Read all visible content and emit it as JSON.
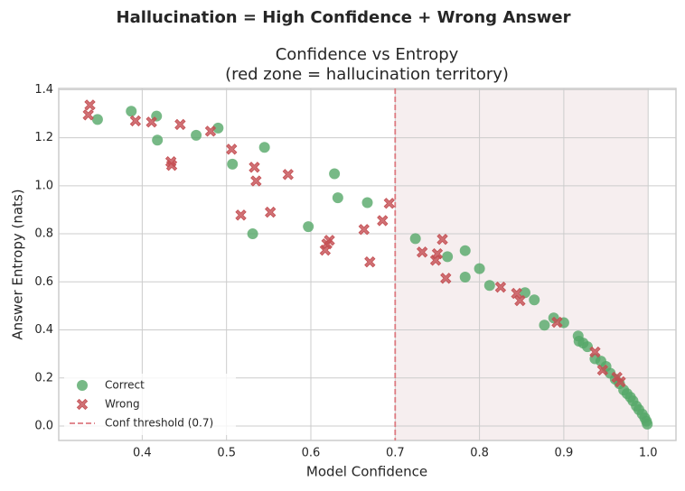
{
  "chart_data": {
    "type": "scatter",
    "suptitle": "Hallucination = High Confidence + Wrong Answer",
    "title": "Confidence vs Entropy",
    "subtitle": "(red zone = hallucination territory)",
    "x_label": "Model Confidence",
    "y_label": "Answer Entropy (nats)",
    "xlim": [
      0.301,
      1.033
    ],
    "ylim": [
      -0.06,
      1.405
    ],
    "xticks": [
      0.4,
      0.5,
      0.6,
      0.7,
      0.8,
      0.9,
      {
        "value": 1,
        "label": "1.0"
      }
    ],
    "yticks": [
      {
        "value": 0,
        "label": "0.0"
      },
      0.2,
      0.4,
      0.6,
      0.8,
      {
        "value": 1,
        "label": "1.0"
      },
      1.2,
      1.4
    ],
    "grid": true,
    "legend": "lower left",
    "shaded_region": {
      "x": [
        0.7,
        1
      ],
      "color": "#f6eeef"
    },
    "threshold": {
      "value": 0.7,
      "label": "Conf threshold (0.7)",
      "color": "#dd7a80"
    },
    "series": [
      {
        "name": "Correct",
        "color": "#55a868",
        "marker": "o",
        "x": [
          0.347,
          0.387,
          0.417,
          0.418,
          0.464,
          0.49,
          0.507,
          0.545,
          0.531,
          0.597,
          0.628,
          0.632,
          0.667,
          0.724,
          0.762,
          0.783,
          0.783,
          0.8,
          0.812,
          0.854,
          0.865,
          0.877,
          0.888,
          0.9,
          0.917,
          0.918,
          0.923,
          0.928,
          0.937,
          0.944,
          0.95,
          0.955,
          0.961,
          0.966,
          0.971,
          0.975,
          0.979,
          0.982,
          0.986,
          0.989,
          0.993,
          0.996,
          0.998,
          0.999
        ],
        "y": [
          1.276,
          1.31,
          1.29,
          1.19,
          1.21,
          1.24,
          1.09,
          1.16,
          0.8,
          0.83,
          1.05,
          0.95,
          0.93,
          0.78,
          0.705,
          0.73,
          0.62,
          0.655,
          0.585,
          0.555,
          0.525,
          0.42,
          0.45,
          0.43,
          0.375,
          0.353,
          0.345,
          0.33,
          0.28,
          0.27,
          0.248,
          0.22,
          0.195,
          0.176,
          0.15,
          0.135,
          0.12,
          0.105,
          0.083,
          0.068,
          0.05,
          0.034,
          0.02,
          0.008
        ]
      },
      {
        "name": "Wrong",
        "color": "#c44e52",
        "marker": "X",
        "x": [
          0.338,
          0.336,
          0.392,
          0.411,
          0.434,
          0.435,
          0.445,
          0.481,
          0.506,
          0.533,
          0.535,
          0.573,
          0.517,
          0.552,
          0.617,
          0.619,
          0.622,
          0.663,
          0.67,
          0.685,
          0.693,
          0.732,
          0.748,
          0.75,
          0.756,
          0.76,
          0.825,
          0.844,
          0.848,
          0.892,
          0.937,
          0.946,
          0.963,
          0.967
        ],
        "y": [
          1.336,
          1.295,
          1.27,
          1.265,
          1.1,
          1.085,
          1.255,
          1.227,
          1.152,
          1.077,
          1.02,
          1.047,
          0.878,
          0.89,
          0.732,
          0.758,
          0.773,
          0.818,
          0.683,
          0.855,
          0.927,
          0.724,
          0.69,
          0.717,
          0.777,
          0.615,
          0.578,
          0.552,
          0.522,
          0.432,
          0.308,
          0.233,
          0.203,
          0.184
        ]
      }
    ]
  }
}
